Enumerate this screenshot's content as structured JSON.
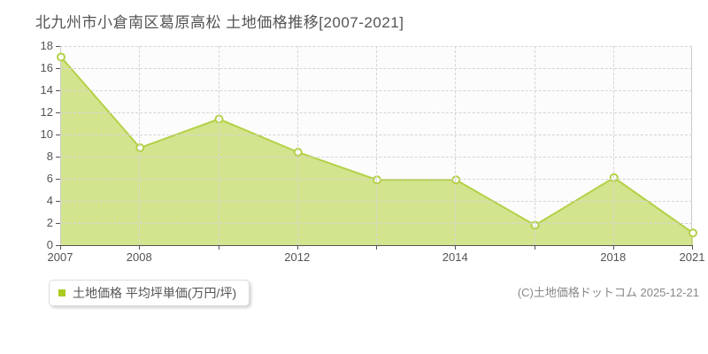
{
  "page": {
    "title": "北九州市小倉南区葛原高松 土地価格推移[2007-2021]"
  },
  "chart_data": {
    "type": "area",
    "title": "北九州市小倉南区葛原高松 土地価格推移[2007-2021]",
    "x": [
      "2007",
      "2008",
      "2010",
      "2012",
      "2013",
      "2014",
      "2016",
      "2018",
      "2021"
    ],
    "values": [
      17.0,
      8.8,
      11.4,
      8.4,
      5.9,
      5.9,
      1.8,
      6.1,
      1.1
    ],
    "x_axis_labels": [
      "2007",
      "2008",
      "2012",
      "2014",
      "2018",
      "2021"
    ],
    "x_axis_label_indices": [
      0,
      1,
      3,
      5,
      7,
      8
    ],
    "y_ticks": [
      0,
      2,
      4,
      6,
      8,
      10,
      12,
      14,
      16,
      18
    ],
    "ylim": [
      0,
      18
    ],
    "xlabel": "",
    "ylabel": "",
    "grid": "dashed",
    "x_spacing": "equal",
    "legend_position": "bottom-left",
    "series_name": "土地価格 平均坪単価(万円/坪)"
  },
  "legend": {
    "label": "土地価格 平均坪単価(万円/坪)"
  },
  "footer": {
    "copyright": "(C)土地価格ドットコム 2025-12-21"
  },
  "colors": {
    "line": "#b3d147",
    "fill": "#aacc22",
    "fill_opacity": "0.5",
    "marker_fill": "#ffffff",
    "legend_marker": "#aacc22",
    "axis": "#545454",
    "grid": "#d4d4d4",
    "text": "#545454",
    "muted": "#888888"
  }
}
